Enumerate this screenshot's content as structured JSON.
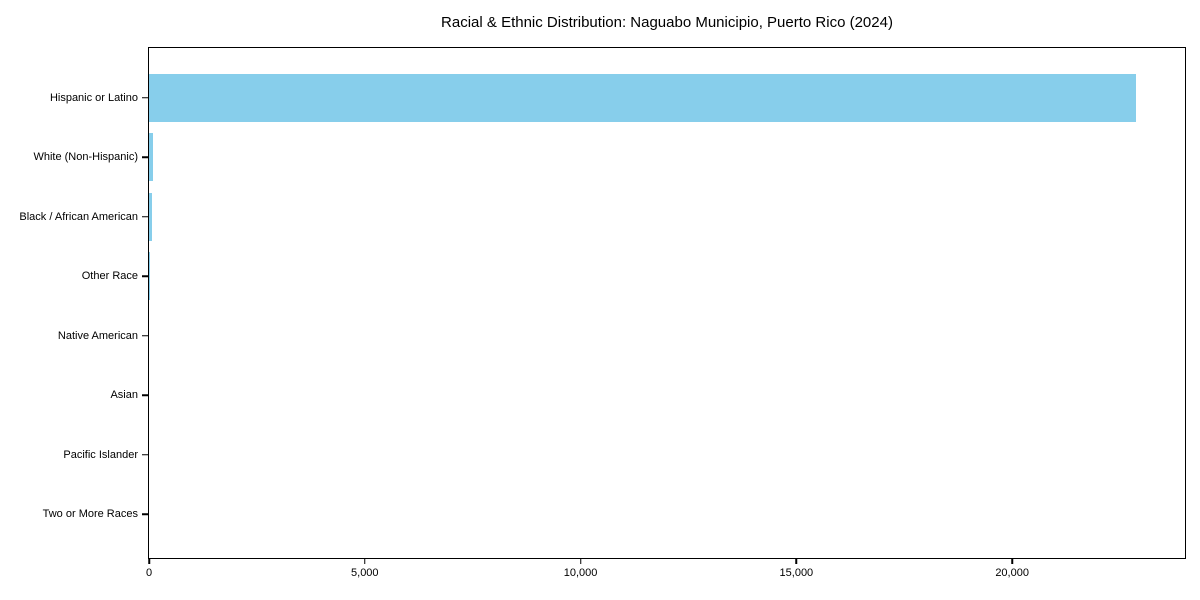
{
  "chart_data": {
    "type": "bar",
    "orientation": "horizontal",
    "title": "Racial & Ethnic Distribution: Naguabo Municipio, Puerto Rico (2024)",
    "categories": [
      "Hispanic or Latino",
      "White (Non-Hispanic)",
      "Black / African American",
      "Other Race",
      "Native American",
      "Asian",
      "Pacific Islander",
      "Two or More Races"
    ],
    "values": [
      22860,
      100,
      75,
      20,
      0,
      0,
      0,
      0
    ],
    "bar_color": "#87CEEB",
    "axis_color": "#000000",
    "text_color": "#000000",
    "xlabel": "",
    "ylabel": "",
    "xlim": [
      0,
      24005
    ],
    "xticks": [
      0,
      5000,
      10000,
      15000,
      20000
    ],
    "xtick_labels": [
      "0",
      "5,000",
      "10,000",
      "15,000",
      "20,000"
    ],
    "grid": false,
    "legend": null,
    "bar_height_fraction": 0.8
  }
}
